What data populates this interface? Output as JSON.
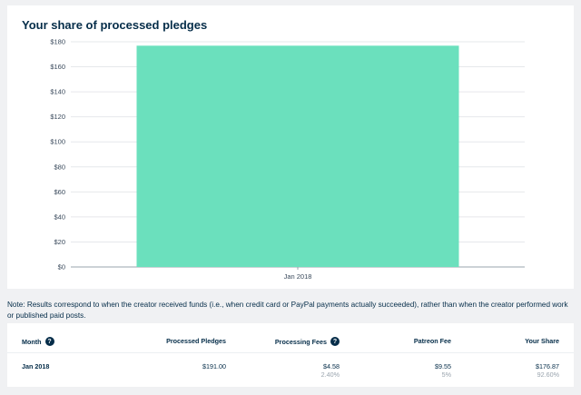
{
  "chart_card": {
    "title": "Your share of processed pledges"
  },
  "chart_data": {
    "type": "bar",
    "categories": [
      "Jan 2018"
    ],
    "values": [
      176.87
    ],
    "title": "Your share of processed pledges",
    "xlabel": "",
    "ylabel": "",
    "ylim": [
      0,
      180
    ],
    "yticks": [
      "$0",
      "$20",
      "$40",
      "$60",
      "$80",
      "$100",
      "$120",
      "$140",
      "$160",
      "$180"
    ],
    "grid": true,
    "colors": {
      "bar": "#6be0bd",
      "grid": "#e6e8eb",
      "axis": "#9aa4ae"
    }
  },
  "note": "Note: Results correspond to when the creator received funds (i.e., when credit card or PayPal payments actually succeeded), rather than when the creator performed work or published paid posts.",
  "table": {
    "headers": {
      "month": "Month",
      "processed_pledges": "Processed Pledges",
      "processing_fees": "Processing Fees",
      "patreon_fee": "Patreon Fee",
      "your_share": "Your Share"
    },
    "help_icon": "question-circle-icon",
    "rows": [
      {
        "month": "Jan 2018",
        "processed_pledges": "$191.00",
        "processing_fees": "$4.58",
        "processing_fees_pct": "2.40%",
        "patreon_fee": "$9.55",
        "patreon_fee_pct": "5%",
        "your_share": "$176.87",
        "your_share_pct": "92.60%"
      }
    ]
  },
  "colors": {
    "text": "#052d49",
    "muted": "#9aa4ae",
    "background": "#f0f1f3",
    "card": "#ffffff"
  }
}
